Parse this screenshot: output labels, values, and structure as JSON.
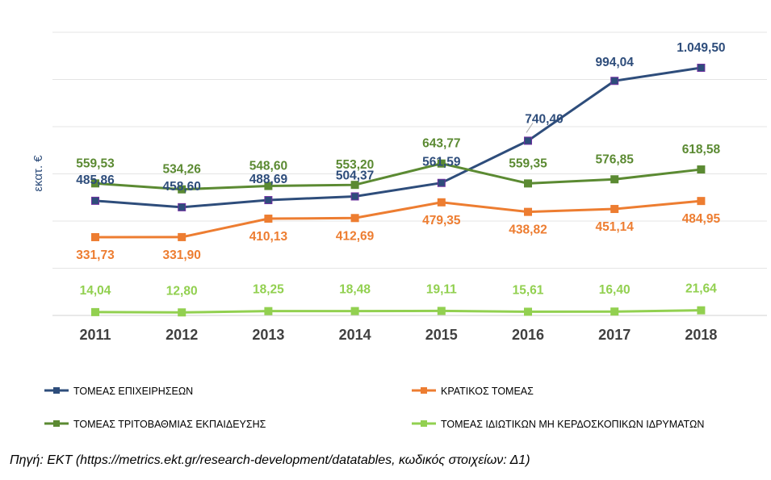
{
  "chart_data": {
    "type": "line",
    "ylabel": "εκατ. €",
    "ylim": [
      0,
      1200
    ],
    "grid": true,
    "legend": "bottom",
    "categories": [
      "2011",
      "2012",
      "2013",
      "2014",
      "2015",
      "2016",
      "2017",
      "2018"
    ],
    "series": [
      {
        "name": "ΤΟΜΕΑΣ ΕΠΙΧΕΙΡΗΣΕΩΝ",
        "color": "#2e4d7b",
        "values": [
          485.86,
          458.6,
          488.69,
          504.37,
          561.59,
          740.4,
          994.04,
          1049.5
        ],
        "labels": [
          "485,86",
          "458,60",
          "488,69",
          "504,37",
          "561,59",
          "740,40",
          "994,04",
          "1.049,50"
        ]
      },
      {
        "name": "ΚΡΑΤΙΚΟΣ ΤΟΜΕΑΣ",
        "color": "#ed7d31",
        "values": [
          331.73,
          331.9,
          410.13,
          412.69,
          479.35,
          438.82,
          451.14,
          484.95
        ],
        "labels": [
          "331,73",
          "331,90",
          "410,13",
          "412,69",
          "479,35",
          "438,82",
          "451,14",
          "484,95"
        ]
      },
      {
        "name": "ΤΟΜΕΑΣ ΤΡΙΤΟΒΑΘΜΙΑΣ ΕΚΠΑΙΔΕΥΣΗΣ",
        "color": "#5b8a32",
        "values": [
          559.53,
          534.26,
          548.6,
          553.2,
          643.77,
          559.35,
          576.85,
          618.58
        ],
        "labels": [
          "559,53",
          "534,26",
          "548,60",
          "553,20",
          "643,77",
          "559,35",
          "576,85",
          "618,58"
        ]
      },
      {
        "name": "ΤΟΜΕΑΣ ΙΔΙΩΤΙΚΩΝ ΜΗ ΚΕΡΔΟΣΚΟΠΙΚΩΝ ΙΔΡΥΜΑΤΩΝ",
        "color": "#92d050",
        "values": [
          14.04,
          12.8,
          18.25,
          18.48,
          19.11,
          15.61,
          16.4,
          21.64
        ],
        "labels": [
          "14,04",
          "12,80",
          "18,25",
          "18,48",
          "19,11",
          "15,61",
          "16,40",
          "21,64"
        ]
      }
    ]
  },
  "source": "Πηγή: ΕΚΤ (https://metrics.ekt.gr/research-development/datatables, κωδικός στοιχείων: Δ1)"
}
